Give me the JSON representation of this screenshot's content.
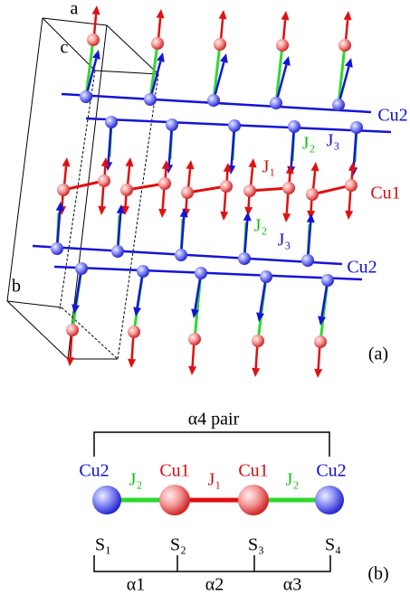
{
  "panel_a": {
    "cell_axes": {
      "a": "a",
      "c": "c",
      "b": "b"
    },
    "labels": {
      "cu2_top": "Cu2",
      "j2_top": "J₂",
      "j3_top": "J₃",
      "j1": "J₁",
      "cu1": "Cu1",
      "j2_bottom": "J₂",
      "j3_bottom": "J₃",
      "cu2_bottom": "Cu2"
    },
    "panel_label": "(a)"
  },
  "panel_b": {
    "pair_label": "α4 pair",
    "sites": [
      "Cu2",
      "Cu1",
      "Cu1",
      "Cu2"
    ],
    "bonds": [
      "J₂",
      "J₁",
      "J₂"
    ],
    "spins": [
      "S₁",
      "S₂",
      "S₃",
      "S₄"
    ],
    "distances": [
      "α1",
      "α2",
      "α3"
    ],
    "panel_label": "(b)"
  }
}
